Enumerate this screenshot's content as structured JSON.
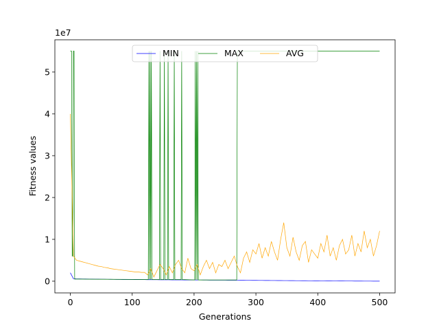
{
  "chart_data": {
    "type": "line",
    "xlabel": "Generations",
    "ylabel": "Fitness values",
    "y_offset_label": "1e7",
    "x": [
      0,
      5,
      10,
      15,
      20,
      25,
      30,
      35,
      40,
      45,
      50,
      55,
      60,
      65,
      70,
      75,
      80,
      85,
      90,
      95,
      100,
      105,
      110,
      115,
      120,
      125,
      130,
      135,
      140,
      145,
      150,
      155,
      160,
      165,
      170,
      175,
      180,
      185,
      190,
      195,
      200,
      205,
      210,
      215,
      220,
      225,
      230,
      235,
      240,
      245,
      250,
      255,
      260,
      265,
      270,
      275,
      280,
      285,
      290,
      295,
      300,
      305,
      310,
      315,
      320,
      325,
      330,
      335,
      340,
      345,
      350,
      355,
      360,
      365,
      370,
      375,
      380,
      385,
      390,
      395,
      400,
      405,
      410,
      415,
      420,
      425,
      430,
      435,
      440,
      445,
      450,
      455,
      460,
      465,
      470,
      475,
      480,
      485,
      490,
      495,
      500
    ],
    "series": [
      {
        "name": "MIN",
        "color": "#0000ff",
        "values": [
          0.2,
          0.06,
          0.055,
          0.054,
          0.053,
          0.052,
          0.051,
          0.05,
          0.049,
          0.048,
          0.047,
          0.046,
          0.045,
          0.044,
          0.043,
          0.042,
          0.041,
          0.04,
          0.04,
          0.039,
          0.039,
          0.038,
          0.038,
          0.037,
          0.037,
          0.036,
          0.036,
          0.035,
          0.035,
          0.034,
          0.034,
          0.033,
          0.033,
          0.032,
          0.032,
          0.031,
          0.031,
          0.03,
          0.03,
          0.029,
          0.029,
          0.028,
          0.028,
          0.027,
          0.027,
          0.026,
          0.026,
          0.025,
          0.025,
          0.024,
          0.024,
          0.023,
          0.023,
          0.022,
          0.022,
          0.021,
          0.021,
          0.02,
          0.02,
          0.019,
          0.019,
          0.018,
          0.018,
          0.017,
          0.017,
          0.016,
          0.016,
          0.015,
          0.015,
          0.014,
          0.014,
          0.013,
          0.013,
          0.012,
          0.012,
          0.011,
          0.011,
          0.01,
          0.01,
          0.009,
          0.009,
          0.008,
          0.008,
          0.007,
          0.007,
          0.006,
          0.006,
          0.005,
          0.005,
          0.004,
          0.004,
          0.004,
          0.003,
          0.003,
          0.003,
          0.002,
          0.002,
          0.002,
          0.001,
          0.001,
          0.001
        ]
      },
      {
        "name": "MAX",
        "color": "#008000",
        "x": [
          0,
          2,
          3,
          4,
          5,
          6,
          7,
          8,
          126,
          127,
          128,
          129,
          130,
          131,
          132,
          144,
          145,
          146,
          151,
          152,
          153,
          157,
          158,
          159,
          167,
          168,
          169,
          179,
          180,
          181,
          201,
          202,
          203,
          204,
          205,
          206,
          207,
          208,
          269,
          270,
          500
        ],
        "values": [
          5.5,
          5.5,
          0.6,
          0.6,
          5.5,
          5.5,
          0.05,
          0.05,
          0.04,
          5.5,
          0.04,
          5.5,
          0.04,
          5.5,
          0.04,
          0.04,
          5.5,
          0.04,
          0.04,
          5.5,
          0.04,
          0.04,
          5.5,
          0.04,
          0.04,
          5.5,
          0.04,
          0.04,
          5.5,
          0.04,
          0.03,
          5.5,
          0.03,
          5.5,
          0.03,
          5.5,
          0.03,
          0.03,
          0.03,
          5.5,
          5.5
        ]
      },
      {
        "name": "AVG",
        "color": "#ffa500",
        "values": [
          4.0,
          0.6,
          0.5,
          0.48,
          0.46,
          0.44,
          0.42,
          0.4,
          0.38,
          0.36,
          0.35,
          0.33,
          0.32,
          0.3,
          0.29,
          0.28,
          0.27,
          0.26,
          0.25,
          0.24,
          0.23,
          0.22,
          0.22,
          0.21,
          0.21,
          0.15,
          0.3,
          0.1,
          0.25,
          0.4,
          0.3,
          0.15,
          0.35,
          0.2,
          0.4,
          0.5,
          0.3,
          0.2,
          0.55,
          0.3,
          0.25,
          0.4,
          0.15,
          0.35,
          0.5,
          0.3,
          0.45,
          0.2,
          0.4,
          0.35,
          0.5,
          0.3,
          0.45,
          0.6,
          0.35,
          0.2,
          0.55,
          0.7,
          0.45,
          0.75,
          0.65,
          0.9,
          0.55,
          0.8,
          0.6,
          0.95,
          0.7,
          0.5,
          1.0,
          1.4,
          0.8,
          0.6,
          1.05,
          0.7,
          0.5,
          0.85,
          0.95,
          0.45,
          0.75,
          0.65,
          0.55,
          0.9,
          0.7,
          1.1,
          0.6,
          0.8,
          0.5,
          0.85,
          1.0,
          0.65,
          0.75,
          1.1,
          0.6,
          0.9,
          0.7,
          1.2,
          0.8,
          1.0,
          0.6,
          0.85,
          1.2
        ]
      }
    ],
    "xlim": [
      -25,
      525
    ],
    "ylim": [
      -0.28,
      5.77
    ],
    "xticks": [
      0,
      100,
      200,
      300,
      400,
      500
    ],
    "yticks": [
      0,
      1,
      2,
      3,
      4,
      5
    ],
    "legend": "upper center",
    "grid": false
  }
}
